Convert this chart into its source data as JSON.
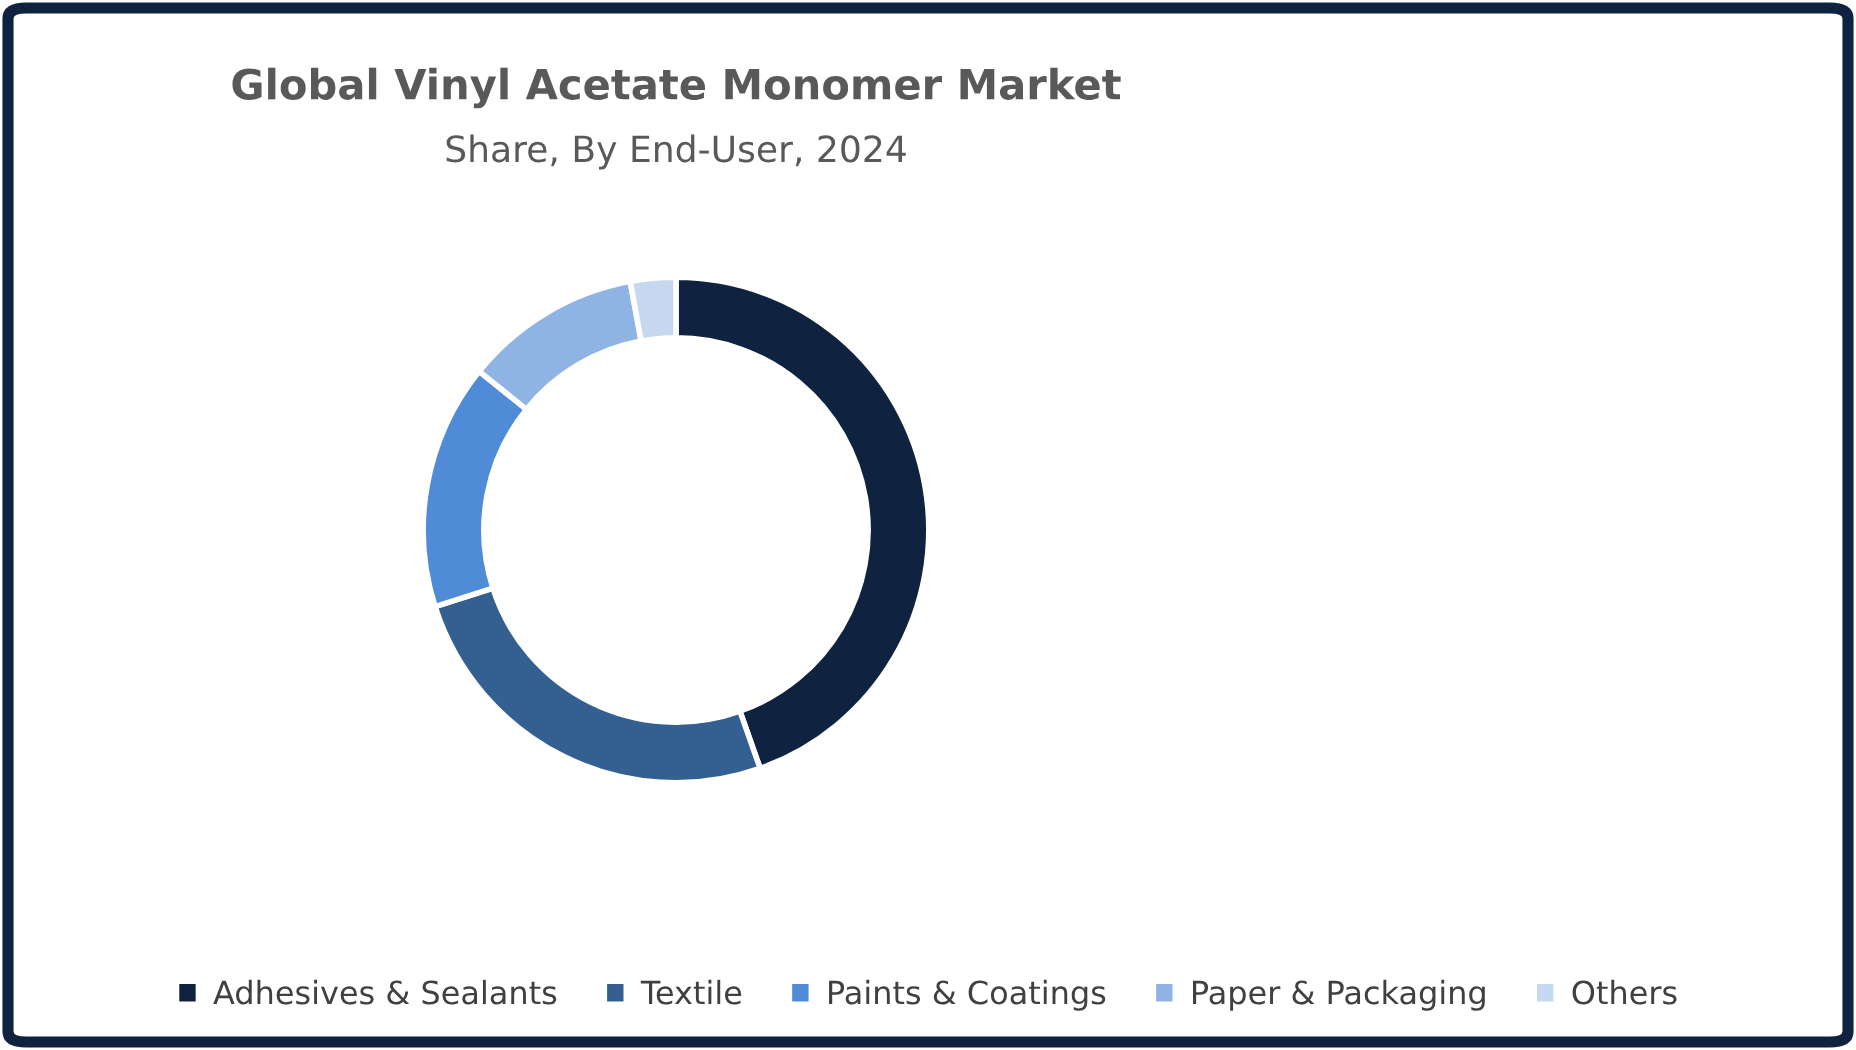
{
  "chart_data": {
    "type": "donut",
    "title": "Global Vinyl Acetate Monomer Market",
    "subtitle": "Share, By End-User, 2024",
    "categories": [
      "Adhesives & Sealants",
      "Textile",
      "Paints & Coatings",
      "Paper & Packaging",
      "Others"
    ],
    "values": [
      44.6,
      25.5,
      15.7,
      11.3,
      2.9
    ],
    "colors": [
      "#0f2340",
      "#345f91",
      "#4f8bd6",
      "#8fb4e3",
      "#c5d8f0"
    ],
    "legend": "bottom"
  }
}
